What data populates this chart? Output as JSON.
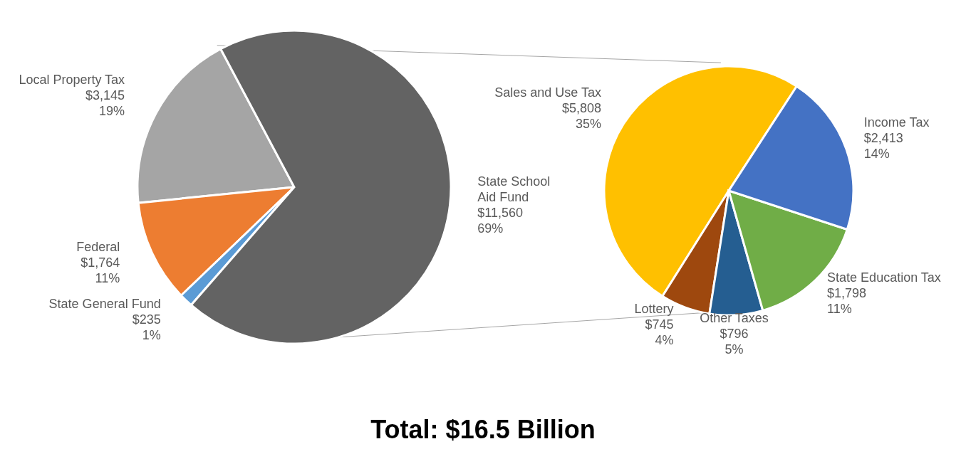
{
  "chart_data": [
    {
      "type": "pie",
      "categories": [
        "Local Property Tax",
        "Federal",
        "State General Fund",
        "State School Aid Fund"
      ],
      "values": [
        3145,
        1764,
        235,
        11560
      ],
      "colors": [
        "#a5a5a5",
        "#ed7d31",
        "#5b9bd5",
        "#636363"
      ],
      "value_labels": [
        "$3,145\n19%",
        "$1,764\n11%",
        "$235\n1%",
        "$11,560\n69%"
      ],
      "annotations": [
        "Total:  $16.5 Billion"
      ]
    },
    {
      "type": "pie",
      "categories": [
        "Sales and Use Tax",
        "Lottery",
        "Other Taxes",
        "State Education Tax",
        "Income Tax"
      ],
      "values": [
        5808,
        745,
        796,
        1798,
        2413
      ],
      "colors": [
        "#ffc000",
        "#9e480e",
        "#255e91",
        "#70ad47",
        "#4472c4"
      ],
      "value_labels": [
        "$5,808\n35%",
        "$745\n4%",
        "$796\n5%",
        "$1,798\n11%",
        "$2,413\n14%"
      ]
    }
  ]
}
